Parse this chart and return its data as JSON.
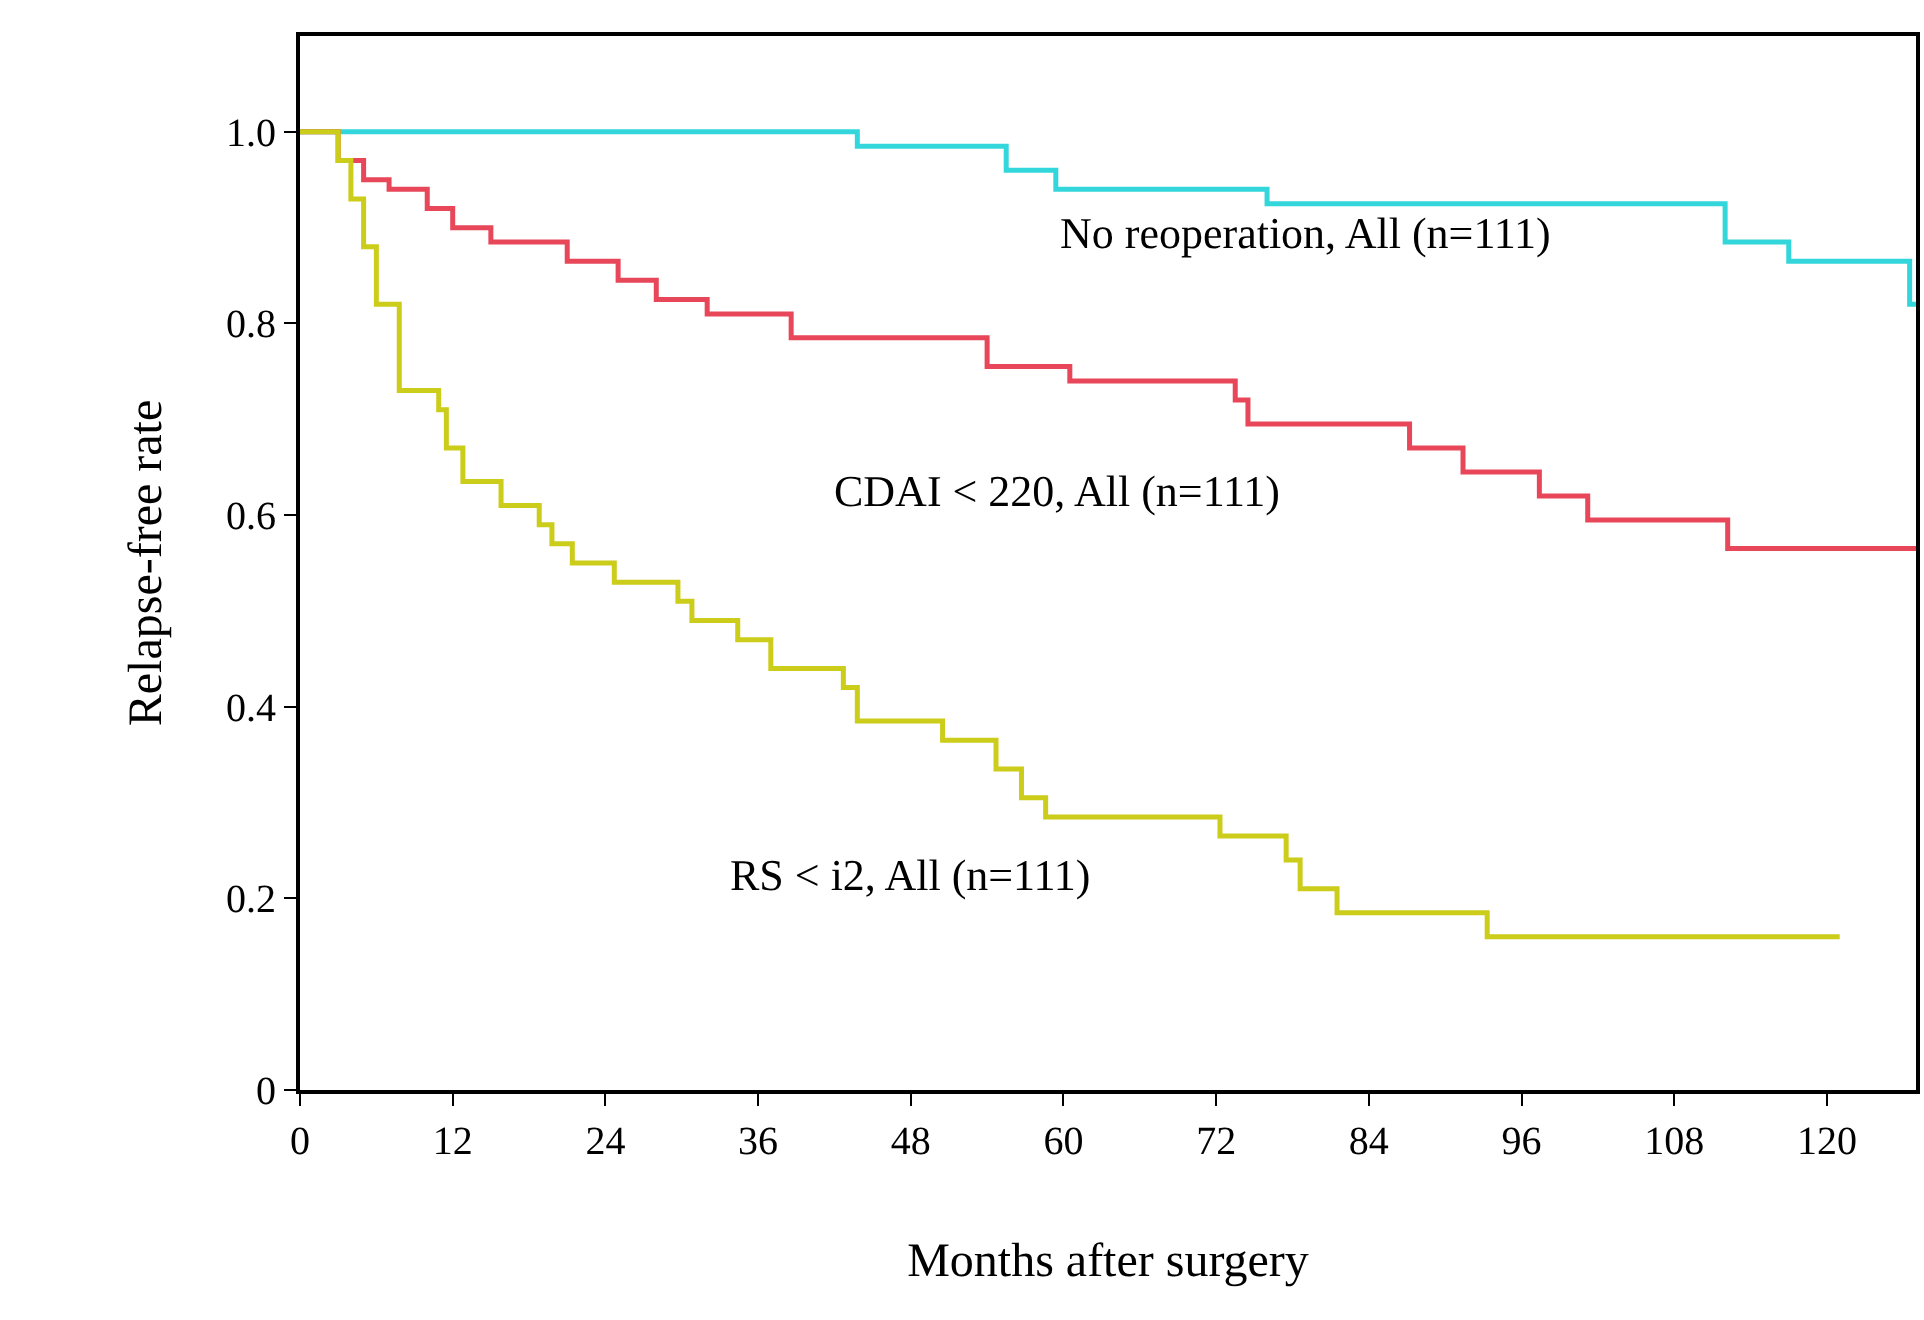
{
  "chart_data": {
    "type": "step",
    "xlabel": "Months after surgery",
    "ylabel": "Relapse-free rate",
    "xlim": [
      0,
      127
    ],
    "xticks": [
      0,
      12,
      24,
      36,
      48,
      60,
      72,
      84,
      96,
      108,
      120
    ],
    "ylim": [
      0,
      1.1
    ],
    "yticks": [
      0,
      {
        "value": 0.2,
        "label": "0.2"
      },
      {
        "value": 0.4,
        "label": "0.4"
      },
      {
        "value": 0.6,
        "label": "0.6"
      },
      {
        "value": 0.8,
        "label": "0.8"
      },
      {
        "value": 1,
        "label": "1.0"
      }
    ],
    "legend": false,
    "marker": "none",
    "line_style": "solid",
    "series": [
      {
        "name": "No reoperation, All (n=111)",
        "color": "#33d6db",
        "x": [
          0,
          43.8,
          55.5,
          59.4,
          76,
          112,
          117,
          126.5,
          127
        ],
        "values": [
          1,
          0.985,
          0.96,
          0.94,
          0.925,
          0.885,
          0.865,
          0.82,
          0.82
        ]
      },
      {
        "name": "CDAI < 220, All (n=111)",
        "color": "#e8475a",
        "x": [
          0,
          3,
          5,
          7,
          10,
          12,
          15,
          21,
          25,
          28,
          32,
          38.6,
          54,
          60.5,
          73.5,
          74.5,
          87.2,
          91.4,
          97.4,
          101.2,
          112.2,
          127
        ],
        "values": [
          1,
          0.97,
          0.95,
          0.94,
          0.92,
          0.9,
          0.885,
          0.865,
          0.845,
          0.825,
          0.81,
          0.785,
          0.755,
          0.74,
          0.72,
          0.695,
          0.67,
          0.645,
          0.62,
          0.595,
          0.565,
          0.565
        ]
      },
      {
        "name": "RS < i2, All (n=111)",
        "color": "#cccc1a",
        "x": [
          0,
          3,
          4,
          5,
          6,
          7.8,
          10.9,
          11.5,
          12.8,
          15.8,
          18.8,
          19.8,
          21.4,
          24.7,
          29.7,
          30.8,
          34.4,
          37,
          42.7,
          43.8,
          50.5,
          54.7,
          56.7,
          58.6,
          72.3,
          77.5,
          78.6,
          81.5,
          93.3,
          121
        ],
        "values": [
          1,
          0.97,
          0.93,
          0.88,
          0.82,
          0.73,
          0.71,
          0.67,
          0.635,
          0.61,
          0.59,
          0.57,
          0.55,
          0.53,
          0.51,
          0.49,
          0.47,
          0.44,
          0.42,
          0.385,
          0.365,
          0.335,
          0.305,
          0.285,
          0.265,
          0.24,
          0.21,
          0.185,
          0.16,
          0.16
        ]
      }
    ]
  }
}
